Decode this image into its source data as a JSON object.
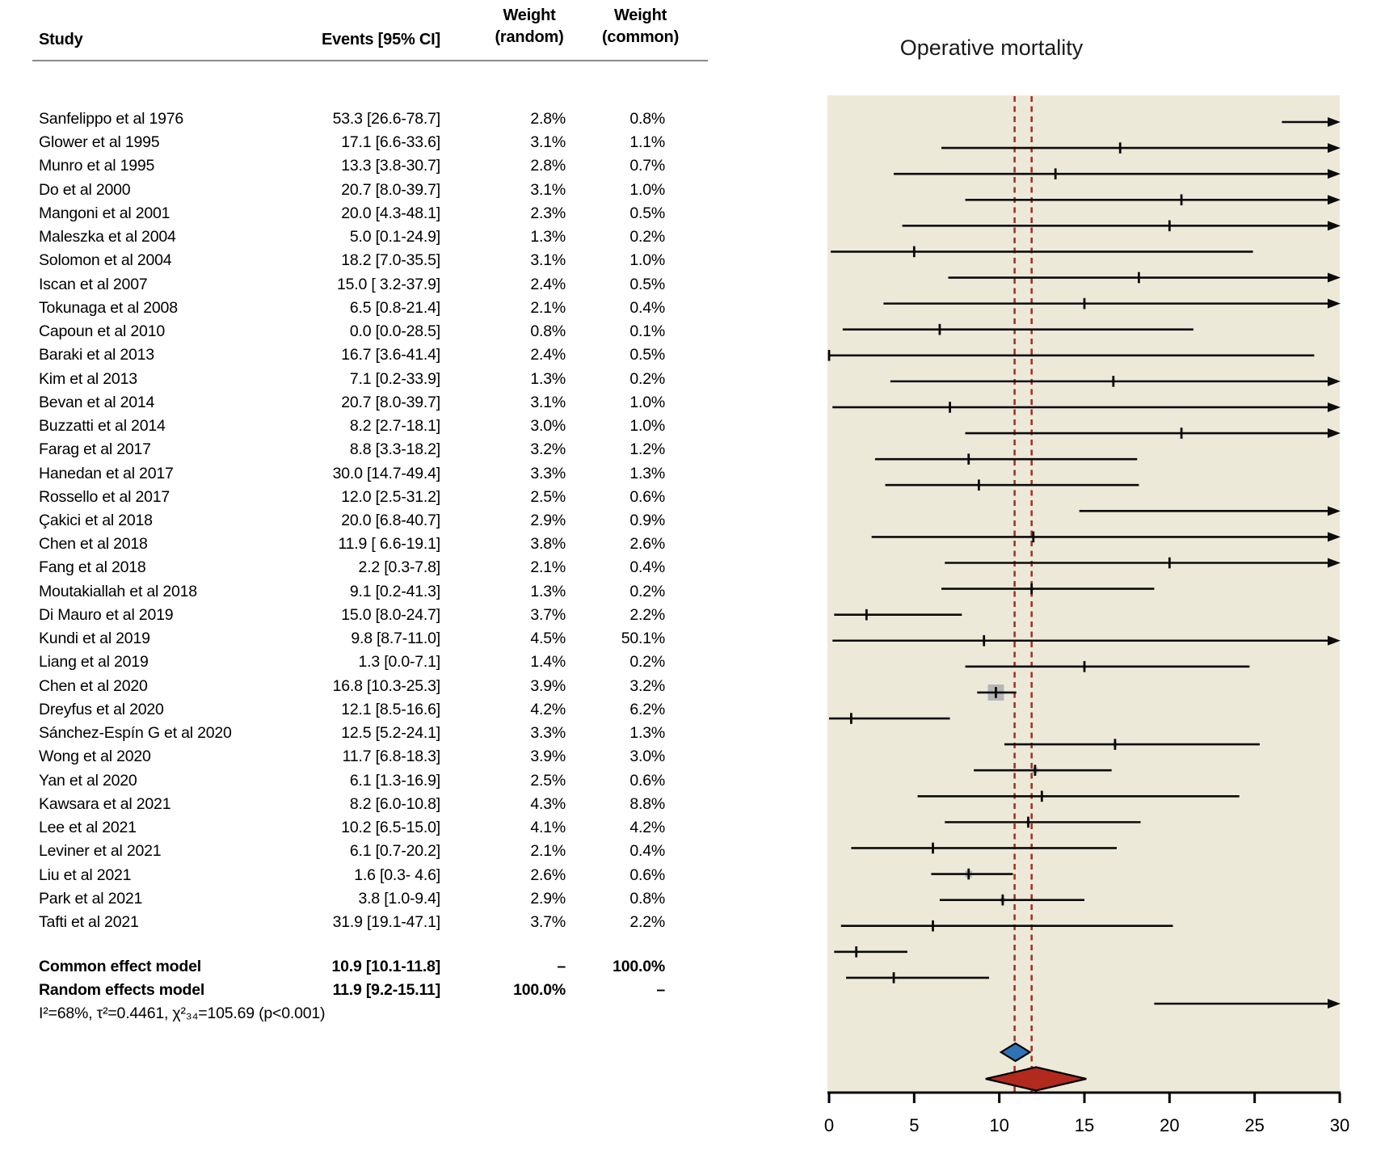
{
  "table": {
    "col_study": "Study",
    "col_events": "Events [95% CI]",
    "col_weight_random_line1": "Weight",
    "col_weight_random_line2": "(random)",
    "col_weight_common_line1": "Weight",
    "col_weight_common_line2": "(common)"
  },
  "chart_data": {
    "type": "scatter",
    "variant": "forest-plot",
    "title": "Operative mortality",
    "xlabel": "",
    "xlim": [
      0,
      30
    ],
    "xticks": [
      0,
      5,
      10,
      15,
      20,
      25,
      30
    ],
    "reference_lines": [
      10.9,
      11.9
    ],
    "colors": {
      "plot_background": "#ECE9D8",
      "reference_line": "#A93226",
      "ci_line": "#0b0b0b",
      "weight_square": "#b3b5b7",
      "common_diamond": "#2E74B5",
      "random_diamond": "#B22A1E"
    },
    "studies": [
      {
        "name": "Sanfelippo et al 1976",
        "events_ci": "53.3 [26.6-78.7]",
        "estimate": 53.3,
        "lo": 26.6,
        "hi": 78.7,
        "weight_random": "2.8%",
        "weight_common": "0.8%",
        "wc": 0.8
      },
      {
        "name": "Glower et al 1995",
        "events_ci": "17.1 [6.6-33.6]",
        "estimate": 17.1,
        "lo": 6.6,
        "hi": 33.6,
        "weight_random": "3.1%",
        "weight_common": "1.1%",
        "wc": 1.1
      },
      {
        "name": "Munro et al 1995",
        "events_ci": "13.3 [3.8-30.7]",
        "estimate": 13.3,
        "lo": 3.8,
        "hi": 30.7,
        "weight_random": "2.8%",
        "weight_common": "0.7%",
        "wc": 0.7
      },
      {
        "name": "Do et al 2000",
        "events_ci": "20.7 [8.0-39.7]",
        "estimate": 20.7,
        "lo": 8.0,
        "hi": 39.7,
        "weight_random": "3.1%",
        "weight_common": "1.0%",
        "wc": 1.0
      },
      {
        "name": "Mangoni et al 2001",
        "events_ci": "20.0 [4.3-48.1]",
        "estimate": 20.0,
        "lo": 4.3,
        "hi": 48.1,
        "weight_random": "2.3%",
        "weight_common": "0.5%",
        "wc": 0.5
      },
      {
        "name": "Maleszka et al 2004",
        "events_ci": "5.0 [0.1-24.9]",
        "estimate": 5.0,
        "lo": 0.1,
        "hi": 24.9,
        "weight_random": "1.3%",
        "weight_common": "0.2%",
        "wc": 0.2
      },
      {
        "name": "Solomon et al 2004",
        "events_ci": "18.2 [7.0-35.5]",
        "estimate": 18.2,
        "lo": 7.0,
        "hi": 35.5,
        "weight_random": "3.1%",
        "weight_common": "1.0%",
        "wc": 1.0
      },
      {
        "name": "Iscan et al 2007",
        "events_ci": "15.0 [ 3.2-37.9]",
        "estimate": 15.0,
        "lo": 3.2,
        "hi": 37.9,
        "weight_random": "2.4%",
        "weight_common": "0.5%",
        "wc": 0.5
      },
      {
        "name": "Tokunaga et al 2008",
        "events_ci": "6.5 [0.8-21.4]",
        "estimate": 6.5,
        "lo": 0.8,
        "hi": 21.4,
        "weight_random": "2.1%",
        "weight_common": "0.4%",
        "wc": 0.4
      },
      {
        "name": "Capoun et al 2010",
        "events_ci": "0.0 [0.0-28.5]",
        "estimate": 0.0,
        "lo": 0.0,
        "hi": 28.5,
        "weight_random": "0.8%",
        "weight_common": "0.1%",
        "wc": 0.1
      },
      {
        "name": "Baraki et al 2013",
        "events_ci": "16.7 [3.6-41.4]",
        "estimate": 16.7,
        "lo": 3.6,
        "hi": 41.4,
        "weight_random": "2.4%",
        "weight_common": "0.5%",
        "wc": 0.5
      },
      {
        "name": "Kim et al 2013",
        "events_ci": "7.1 [0.2-33.9]",
        "estimate": 7.1,
        "lo": 0.2,
        "hi": 33.9,
        "weight_random": "1.3%",
        "weight_common": "0.2%",
        "wc": 0.2
      },
      {
        "name": "Bevan et al 2014",
        "events_ci": "20.7 [8.0-39.7]",
        "estimate": 20.7,
        "lo": 8.0,
        "hi": 39.7,
        "weight_random": "3.1%",
        "weight_common": "1.0%",
        "wc": 1.0
      },
      {
        "name": "Buzzatti et al 2014",
        "events_ci": "8.2 [2.7-18.1]",
        "estimate": 8.2,
        "lo": 2.7,
        "hi": 18.1,
        "weight_random": "3.0%",
        "weight_common": "1.0%",
        "wc": 1.0
      },
      {
        "name": "Farag et al 2017",
        "events_ci": "8.8 [3.3-18.2]",
        "estimate": 8.8,
        "lo": 3.3,
        "hi": 18.2,
        "weight_random": "3.2%",
        "weight_common": "1.2%",
        "wc": 1.2
      },
      {
        "name": "Hanedan et al 2017",
        "events_ci": "30.0 [14.7-49.4]",
        "estimate": 30.0,
        "lo": 14.7,
        "hi": 49.4,
        "weight_random": "3.3%",
        "weight_common": "1.3%",
        "wc": 1.3
      },
      {
        "name": "Rossello et al 2017",
        "events_ci": "12.0 [2.5-31.2]",
        "estimate": 12.0,
        "lo": 2.5,
        "hi": 31.2,
        "weight_random": "2.5%",
        "weight_common": "0.6%",
        "wc": 0.6
      },
      {
        "name": "Çakici et al 2018",
        "events_ci": "20.0 [6.8-40.7]",
        "estimate": 20.0,
        "lo": 6.8,
        "hi": 40.7,
        "weight_random": "2.9%",
        "weight_common": "0.9%",
        "wc": 0.9
      },
      {
        "name": "Chen et al 2018",
        "events_ci": "11.9 [ 6.6-19.1]",
        "estimate": 11.9,
        "lo": 6.6,
        "hi": 19.1,
        "weight_random": "3.8%",
        "weight_common": "2.6%",
        "wc": 2.6
      },
      {
        "name": "Fang et al 2018",
        "events_ci": "2.2 [0.3-7.8]",
        "estimate": 2.2,
        "lo": 0.3,
        "hi": 7.8,
        "weight_random": "2.1%",
        "weight_common": "0.4%",
        "wc": 0.4
      },
      {
        "name": "Moutakiallah et al 2018",
        "events_ci": "9.1 [0.2-41.3]",
        "estimate": 9.1,
        "lo": 0.2,
        "hi": 41.3,
        "weight_random": "1.3%",
        "weight_common": "0.2%",
        "wc": 0.2
      },
      {
        "name": "Di Mauro et al 2019",
        "events_ci": "15.0 [8.0-24.7]",
        "estimate": 15.0,
        "lo": 8.0,
        "hi": 24.7,
        "weight_random": "3.7%",
        "weight_common": "2.2%",
        "wc": 2.2
      },
      {
        "name": "Kundi et al 2019",
        "events_ci": "9.8 [8.7-11.0]",
        "estimate": 9.8,
        "lo": 8.7,
        "hi": 11.0,
        "weight_random": "4.5%",
        "weight_common": "50.1%",
        "wc": 50.1
      },
      {
        "name": "Liang et al 2019",
        "events_ci": "1.3 [0.0-7.1]",
        "estimate": 1.3,
        "lo": 0.0,
        "hi": 7.1,
        "weight_random": "1.4%",
        "weight_common": "0.2%",
        "wc": 0.2
      },
      {
        "name": "Chen et al 2020",
        "events_ci": "16.8 [10.3-25.3]",
        "estimate": 16.8,
        "lo": 10.3,
        "hi": 25.3,
        "weight_random": "3.9%",
        "weight_common": "3.2%",
        "wc": 3.2
      },
      {
        "name": "Dreyfus et al 2020",
        "events_ci": "12.1 [8.5-16.6]",
        "estimate": 12.1,
        "lo": 8.5,
        "hi": 16.6,
        "weight_random": "4.2%",
        "weight_common": "6.2%",
        "wc": 6.2
      },
      {
        "name": "Sánchez-Espín G et al 2020",
        "events_ci": "12.5 [5.2-24.1]",
        "estimate": 12.5,
        "lo": 5.2,
        "hi": 24.1,
        "weight_random": "3.3%",
        "weight_common": "1.3%",
        "wc": 1.3
      },
      {
        "name": "Wong et al 2020",
        "events_ci": "11.7 [6.8-18.3]",
        "estimate": 11.7,
        "lo": 6.8,
        "hi": 18.3,
        "weight_random": "3.9%",
        "weight_common": "3.0%",
        "wc": 3.0
      },
      {
        "name": "Yan et al 2020",
        "events_ci": "6.1 [1.3-16.9]",
        "estimate": 6.1,
        "lo": 1.3,
        "hi": 16.9,
        "weight_random": "2.5%",
        "weight_common": "0.6%",
        "wc": 0.6
      },
      {
        "name": "Kawsara et al 2021",
        "events_ci": "8.2 [6.0-10.8]",
        "estimate": 8.2,
        "lo": 6.0,
        "hi": 10.8,
        "weight_random": "4.3%",
        "weight_common": "8.8%",
        "wc": 8.8
      },
      {
        "name": "Lee et al 2021",
        "events_ci": "10.2 [6.5-15.0]",
        "estimate": 10.2,
        "lo": 6.5,
        "hi": 15.0,
        "weight_random": "4.1%",
        "weight_common": "4.2%",
        "wc": 4.2
      },
      {
        "name": "Leviner et al 2021",
        "events_ci": "6.1 [0.7-20.2]",
        "estimate": 6.1,
        "lo": 0.7,
        "hi": 20.2,
        "weight_random": "2.1%",
        "weight_common": "0.4%",
        "wc": 0.4
      },
      {
        "name": "Liu et al 2021",
        "events_ci": "1.6 [0.3- 4.6]",
        "estimate": 1.6,
        "lo": 0.3,
        "hi": 4.6,
        "weight_random": "2.6%",
        "weight_common": "0.6%",
        "wc": 0.6
      },
      {
        "name": "Park et al 2021",
        "events_ci": "3.8 [1.0-9.4]",
        "estimate": 3.8,
        "lo": 1.0,
        "hi": 9.4,
        "weight_random": "2.9%",
        "weight_common": "0.8%",
        "wc": 0.8
      },
      {
        "name": "Tafti et al 2021",
        "events_ci": "31.9 [19.1-47.1]",
        "estimate": 31.9,
        "lo": 19.1,
        "hi": 47.1,
        "weight_random": "3.7%",
        "weight_common": "2.2%",
        "wc": 2.2
      }
    ],
    "summaries": [
      {
        "label": "Common effect model",
        "events_ci": "10.9 [10.1-11.8]",
        "weight_random": "–",
        "weight_common": "100.0%",
        "estimate": 10.9,
        "lo": 10.1,
        "hi": 11.8
      },
      {
        "label": "Random effects model",
        "events_ci": "11.9 [9.2-15.11]",
        "weight_random": "100.0%",
        "weight_common": "–",
        "estimate": 11.9,
        "lo": 9.2,
        "hi": 15.11
      }
    ],
    "heterogeneity": "I²=68%, τ²=0.4461, χ²₃₄=105.69 (p<0.001)"
  }
}
